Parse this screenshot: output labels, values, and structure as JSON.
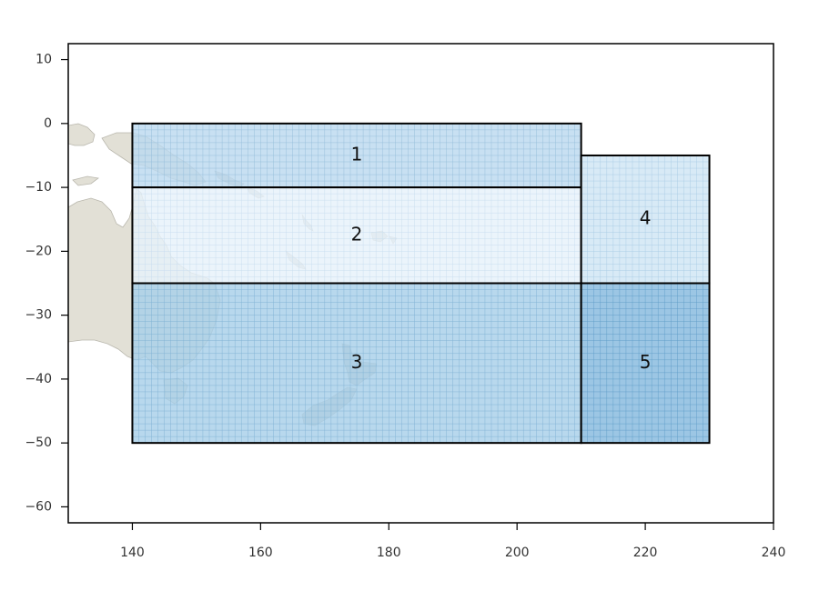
{
  "chart_data": {
    "type": "map",
    "xlim": [
      130,
      240
    ],
    "ylim": [
      -62.5,
      12.5
    ],
    "x_ticks": [
      140,
      160,
      180,
      200,
      220,
      240
    ],
    "y_ticks": [
      10,
      0,
      -10,
      -20,
      -30,
      -40,
      -50,
      -60
    ],
    "x_tick_labels": [
      "140",
      "160",
      "180",
      "200",
      "220",
      "240"
    ],
    "y_tick_labels": [
      "10",
      "0",
      "−10",
      "−20",
      "−30",
      "−40",
      "−50",
      "−60"
    ],
    "grid_resolution_deg": 1,
    "regions": [
      {
        "label": "1",
        "lon": [
          140,
          210
        ],
        "lat": [
          -10,
          0
        ],
        "fill": "#bcd9ef",
        "grid": "#94bcd9",
        "label_at": [
          175,
          -5
        ]
      },
      {
        "label": "2",
        "lon": [
          140,
          210
        ],
        "lat": [
          -25,
          -10
        ],
        "fill": "#e6f1fa",
        "grid": "#c8ddee",
        "label_at": [
          175,
          -17.5
        ]
      },
      {
        "label": "3",
        "lon": [
          140,
          210
        ],
        "lat": [
          -50,
          -25
        ],
        "fill": "#a8cfe9",
        "grid": "#7fb1d4",
        "label_at": [
          175,
          -37.5
        ]
      },
      {
        "label": "4",
        "lon": [
          210,
          230
        ],
        "lat": [
          -25,
          -5
        ],
        "fill": "#d0e5f4",
        "grid": "#a8cbe4",
        "label_at": [
          220,
          -15
        ]
      },
      {
        "label": "5",
        "lon": [
          210,
          230
        ],
        "lat": [
          -50,
          -25
        ],
        "fill": "#86b9de",
        "grid": "#5e9cc8",
        "label_at": [
          220,
          -37.5
        ]
      }
    ],
    "colors": {
      "land": "#e2e0d6",
      "land_stroke": "#b9b7ad",
      "frame": "#000000",
      "region_border": "#000000"
    }
  }
}
